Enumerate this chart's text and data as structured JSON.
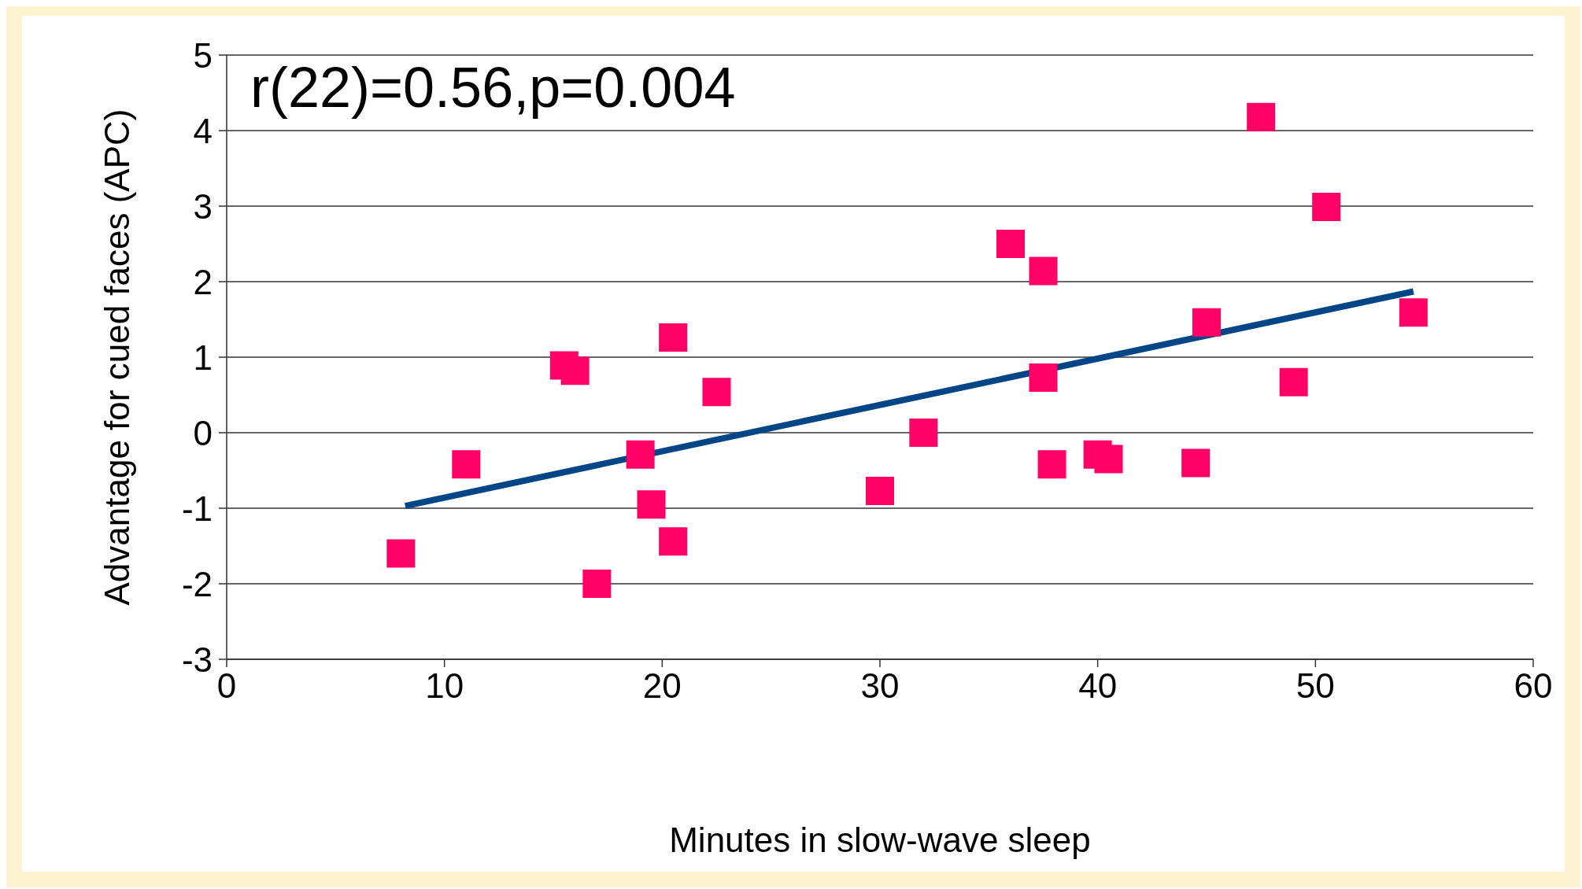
{
  "chart_data": {
    "type": "scatter",
    "xlabel": "Minutes in slow-wave sleep",
    "ylabel": "Advantage for cued faces (APC)",
    "annotations": [
      "r(22)=0.56,p=0.004"
    ],
    "xlim": [
      0,
      60
    ],
    "xticks": [
      0,
      10,
      20,
      30,
      40,
      50,
      60
    ],
    "ylim": [
      -3,
      5
    ],
    "yticks": [
      -3,
      -2,
      -1,
      0,
      1,
      2,
      3,
      4,
      5
    ],
    "grid": "y",
    "marker": "square",
    "series": [
      {
        "color": "#ff0066",
        "x": [
          8.0,
          11.0,
          15.5,
          16.0,
          17.0,
          19.0,
          19.5,
          20.5,
          20.5,
          22.5,
          30.0,
          32.0,
          36.0,
          37.5,
          37.5,
          37.9,
          40.0,
          40.5,
          44.5,
          45.0,
          47.5,
          49.0,
          50.5,
          54.5
        ],
        "values": [
          -1.6,
          -0.42,
          0.89,
          0.82,
          -2.0,
          -0.29,
          -0.95,
          1.26,
          -1.44,
          0.54,
          -0.77,
          0.0,
          2.5,
          2.14,
          0.73,
          -0.42,
          -0.29,
          -0.35,
          -0.4,
          1.46,
          4.18,
          0.67,
          2.99,
          1.59
        ]
      },
      {
        "type": "line",
        "color": "#004586",
        "marker": "none",
        "x": [
          8.2,
          54.5
        ],
        "values": [
          -0.97,
          1.87
        ]
      }
    ]
  }
}
